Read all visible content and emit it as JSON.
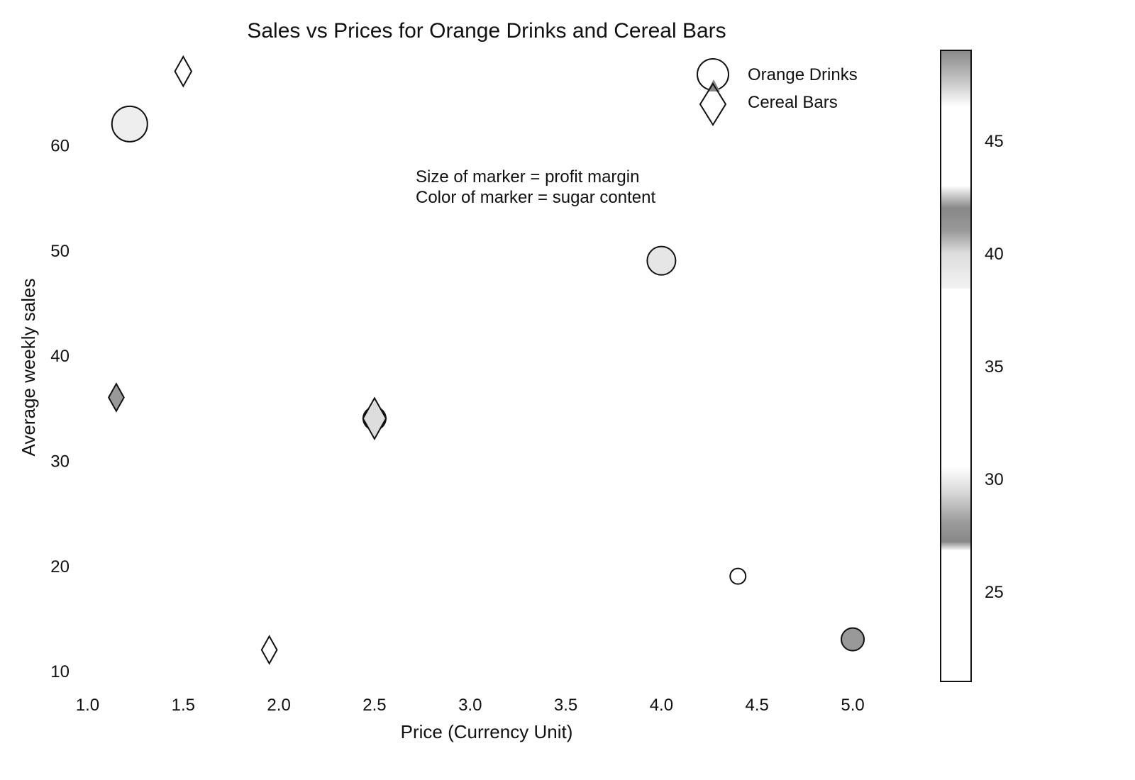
{
  "chart_data": {
    "type": "scatter",
    "title": "Sales vs Prices for Orange Drinks and Cereal Bars",
    "xlabel": "Price (Currency Unit)",
    "ylabel": "Average weekly sales",
    "xlim": [
      0.95,
      5.1
    ],
    "ylim": [
      9,
      69
    ],
    "xticks": [
      "1.0",
      "1.5",
      "2.0",
      "2.5",
      "3.0",
      "3.5",
      "4.0",
      "4.5",
      "5.0"
    ],
    "yticks": [
      "10",
      "20",
      "30",
      "40",
      "50",
      "60"
    ],
    "grid": false,
    "legend_position": "top-right",
    "annotation": [
      "Size of marker = profit margin",
      "Color of marker = sugar content"
    ],
    "series": [
      {
        "name": "Orange Drinks",
        "marker": "circle",
        "points": [
          {
            "x": 1.22,
            "y": 62,
            "sugar": 30,
            "margin": 2.5
          },
          {
            "x": 2.5,
            "y": 34,
            "sugar": 42,
            "margin": 1.6
          },
          {
            "x": 4.0,
            "y": 49,
            "sugar": 47,
            "margin": 2.0
          },
          {
            "x": 4.4,
            "y": 19,
            "sugar": 31,
            "margin": 1.1
          },
          {
            "x": 5.0,
            "y": 13,
            "sugar": 41,
            "margin": 1.6
          }
        ]
      },
      {
        "name": "Cereal Bars",
        "marker": "diamond",
        "points": [
          {
            "x": 1.15,
            "y": 36,
            "sugar": 28,
            "margin": 1.2
          },
          {
            "x": 1.5,
            "y": 67,
            "sugar": 32,
            "margin": 1.3
          },
          {
            "x": 1.95,
            "y": 12,
            "sugar": 31,
            "margin": 1.2
          },
          {
            "x": 2.5,
            "y": 34,
            "sugar": 40,
            "margin": 1.8
          }
        ]
      }
    ],
    "colorbar": {
      "min": 21,
      "max": 49,
      "ticks": [
        "25",
        "30",
        "35",
        "40",
        "45"
      ],
      "colors": {
        "21": "#ffffff",
        "26.8": "#ffffff",
        "27.2": "#888888",
        "28": "#999999",
        "29.5": "#dddddd",
        "30.5": "#ffffff",
        "36.2": "#ffffff",
        "36.5": "#ffffff",
        "37.5": "#ffffff",
        "40": "#dddddd",
        "41": "#999999",
        "42": "#888888",
        "43": "#ffffff",
        "46.5": "#ffffff",
        "47.5": "#cccccc",
        "49": "#888888"
      }
    },
    "colors": {
      "edge": "#111111",
      "legend_triangle": "#888888"
    }
  }
}
